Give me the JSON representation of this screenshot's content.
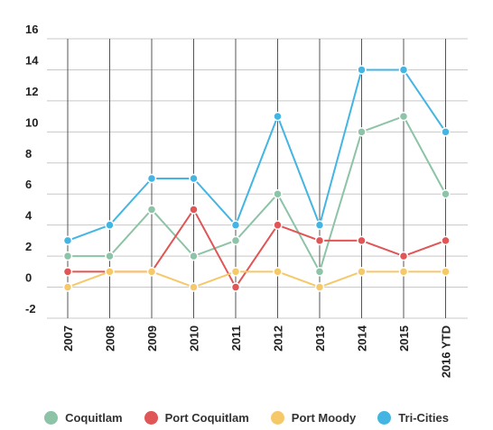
{
  "chart_data": {
    "type": "line",
    "categories": [
      "2007",
      "2008",
      "2009",
      "2010",
      "2011",
      "2012",
      "2013",
      "2014",
      "2015",
      "2016 YTD"
    ],
    "series": [
      {
        "name": "Coquitlam",
        "color": "#8dc3a7",
        "values": [
          2,
          2,
          5,
          2,
          3,
          6,
          1,
          10,
          11,
          6
        ]
      },
      {
        "name": "Port Coquitlam",
        "color": "#e05555",
        "values": [
          1,
          1,
          1,
          5,
          0,
          4,
          3,
          3,
          2,
          3
        ]
      },
      {
        "name": "Port Moody",
        "color": "#f5c869",
        "values": [
          0,
          1,
          1,
          0,
          1,
          1,
          0,
          1,
          1,
          1
        ]
      },
      {
        "name": "Tri-Cities",
        "color": "#44b5e3",
        "values": [
          3,
          4,
          7,
          7,
          4,
          11,
          4,
          14,
          14,
          10
        ]
      }
    ],
    "yticks": [
      "16",
      "14",
      "12",
      "10",
      "8",
      "6",
      "4",
      "2",
      "0",
      "-2"
    ],
    "ylim": [
      -2,
      16
    ],
    "grid": true,
    "legend_position": "bottom"
  }
}
